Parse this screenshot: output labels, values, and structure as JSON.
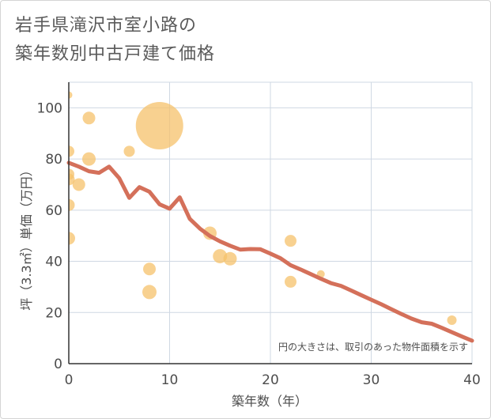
{
  "header": {
    "title_line1": "岩手県滝沢市室小路の",
    "title_line2": "築年数別中古戸建て価格"
  },
  "chart_data": {
    "type": "scatter",
    "xlabel": "築年数（年）",
    "ylabel": "坪（3.3㎡）単価（万円）",
    "xlim": [
      0,
      40
    ],
    "ylim": [
      0,
      110
    ],
    "xticks": [
      0,
      10,
      20,
      30,
      40
    ],
    "yticks": [
      0,
      20,
      40,
      60,
      80,
      100
    ],
    "grid": true,
    "note": "円の大きさは、取引のあった物件面積を示す",
    "colors": {
      "bubble": "#f5c26b",
      "line": "#d4705a",
      "grid": "#cfd8e3"
    },
    "bubbles": [
      {
        "x": 0,
        "y": 105,
        "size": 9
      },
      {
        "x": 0,
        "y": 83,
        "size": 14
      },
      {
        "x": 0,
        "y": 74,
        "size": 14
      },
      {
        "x": 0,
        "y": 72,
        "size": 15
      },
      {
        "x": 0,
        "y": 62,
        "size": 15
      },
      {
        "x": 0,
        "y": 49,
        "size": 16
      },
      {
        "x": 1,
        "y": 70,
        "size": 16
      },
      {
        "x": 2,
        "y": 96,
        "size": 16
      },
      {
        "x": 2,
        "y": 80,
        "size": 17
      },
      {
        "x": 6,
        "y": 83,
        "size": 14
      },
      {
        "x": 8,
        "y": 37,
        "size": 16
      },
      {
        "x": 8,
        "y": 28,
        "size": 18
      },
      {
        "x": 9,
        "y": 93,
        "size": 60
      },
      {
        "x": 14,
        "y": 51,
        "size": 17
      },
      {
        "x": 15,
        "y": 42,
        "size": 18
      },
      {
        "x": 16,
        "y": 41,
        "size": 17
      },
      {
        "x": 22,
        "y": 48,
        "size": 15
      },
      {
        "x": 22,
        "y": 32,
        "size": 15
      },
      {
        "x": 25,
        "y": 35,
        "size": 10
      },
      {
        "x": 38,
        "y": 17,
        "size": 12
      }
    ],
    "trend_line": {
      "x": [
        0,
        1,
        2,
        3,
        4,
        5,
        6,
        7,
        8,
        9,
        10,
        11,
        12,
        13,
        14,
        15,
        16,
        17,
        18,
        19,
        20,
        21,
        22,
        23,
        24,
        25,
        26,
        27,
        28,
        29,
        30,
        31,
        32,
        33,
        34,
        35,
        36,
        37,
        38,
        39,
        40
      ],
      "y": [
        78.5,
        77,
        75.2,
        74.6,
        77,
        72.5,
        64.8,
        69,
        67.2,
        62.3,
        60.6,
        65,
        56.6,
        52.8,
        49.9,
        47.8,
        46.1,
        44.6,
        44.8,
        44.7,
        43,
        41.2,
        38.5,
        36.8,
        35,
        33.2,
        31.5,
        30.4,
        28.6,
        26.8,
        25,
        23.2,
        21.3,
        19.4,
        17.6,
        16.2,
        15.6,
        14,
        12.3,
        10.6,
        9
      ]
    }
  }
}
